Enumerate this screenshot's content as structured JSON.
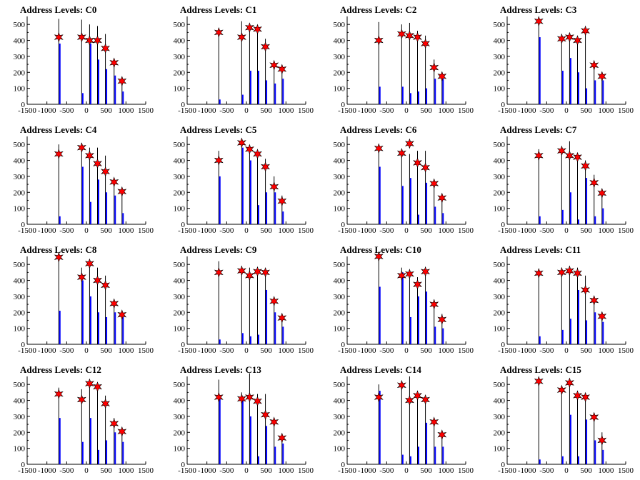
{
  "colors": {
    "background": "#ffffff",
    "black_bar": "#000000",
    "blue_bar": "#0000ff",
    "star_fill": "#ff0000",
    "star_stroke": "#000000",
    "axis": "#000000"
  },
  "chart_data": [
    {
      "type": "bar",
      "title": "Address Levels: C0",
      "xlim": [
        -1500,
        1500
      ],
      "ylim": [
        0,
        550
      ],
      "xticks": [
        -1500,
        -1000,
        -500,
        0,
        500,
        1000,
        1500
      ],
      "yticks": [
        0,
        100,
        200,
        300,
        400,
        500
      ],
      "x": [
        -700,
        -120,
        80,
        280,
        480,
        700,
        900
      ],
      "black_peaks": [
        535,
        530,
        500,
        490,
        440,
        280,
        160
      ],
      "blue_peaks": [
        380,
        70,
        380,
        280,
        220,
        180,
        80
      ],
      "markers": [
        420,
        420,
        400,
        400,
        350,
        260,
        145
      ]
    },
    {
      "type": "bar",
      "title": "Address Levels: C1",
      "xlim": [
        -1500,
        1500
      ],
      "ylim": [
        0,
        550
      ],
      "xticks": [
        -1500,
        -1000,
        -500,
        0,
        500,
        1000,
        1500
      ],
      "yticks": [
        0,
        100,
        200,
        300,
        400,
        500
      ],
      "x": [
        -700,
        -120,
        80,
        280,
        480,
        700,
        900
      ],
      "black_peaks": [
        460,
        520,
        490,
        480,
        410,
        260,
        230
      ],
      "blue_peaks": [
        30,
        60,
        210,
        210,
        150,
        130,
        160
      ],
      "markers": [
        450,
        420,
        480,
        470,
        360,
        245,
        220
      ]
    },
    {
      "type": "bar",
      "title": "Address Levels: C2",
      "xlim": [
        -1500,
        1500
      ],
      "ylim": [
        0,
        550
      ],
      "xticks": [
        -1500,
        -1000,
        -500,
        0,
        500,
        1000,
        1500
      ],
      "yticks": [
        0,
        100,
        200,
        300,
        400,
        500
      ],
      "x": [
        -700,
        -120,
        80,
        280,
        480,
        700,
        900
      ],
      "black_peaks": [
        515,
        500,
        510,
        460,
        430,
        280,
        190
      ],
      "blue_peaks": [
        110,
        110,
        70,
        80,
        100,
        160,
        160
      ],
      "markers": [
        400,
        440,
        430,
        420,
        380,
        230,
        175
      ]
    },
    {
      "type": "bar",
      "title": "Address Levels: C3",
      "xlim": [
        -1500,
        1500
      ],
      "ylim": [
        0,
        550
      ],
      "xticks": [
        -1500,
        -1000,
        -500,
        0,
        500,
        1000,
        1500
      ],
      "yticks": [
        0,
        100,
        200,
        300,
        400,
        500
      ],
      "x": [
        -700,
        -120,
        80,
        280,
        480,
        700,
        900
      ],
      "black_peaks": [
        540,
        440,
        440,
        420,
        460,
        270,
        180
      ],
      "blue_peaks": [
        420,
        210,
        290,
        200,
        100,
        150,
        150
      ],
      "markers": [
        520,
        410,
        420,
        400,
        460,
        245,
        175
      ]
    },
    {
      "type": "bar",
      "title": "Address Levels: C4",
      "xlim": [
        -1500,
        1500
      ],
      "ylim": [
        0,
        550
      ],
      "xticks": [
        -1500,
        -1000,
        -500,
        0,
        500,
        1000,
        1500
      ],
      "yticks": [
        0,
        100,
        200,
        300,
        400,
        500
      ],
      "x": [
        -700,
        -120,
        80,
        280,
        480,
        700,
        900
      ],
      "black_peaks": [
        500,
        510,
        480,
        480,
        430,
        280,
        200
      ],
      "blue_peaks": [
        50,
        360,
        140,
        280,
        200,
        180,
        70
      ],
      "markers": [
        440,
        480,
        430,
        380,
        330,
        265,
        205
      ]
    },
    {
      "type": "bar",
      "title": "Address Levels: C5",
      "xlim": [
        -1500,
        1500
      ],
      "ylim": [
        0,
        550
      ],
      "xticks": [
        -1500,
        -1000,
        -500,
        0,
        500,
        1000,
        1500
      ],
      "yticks": [
        0,
        100,
        200,
        300,
        400,
        500
      ],
      "x": [
        -700,
        -120,
        80,
        280,
        480,
        700,
        900
      ],
      "black_peaks": [
        460,
        520,
        490,
        460,
        410,
        300,
        180
      ],
      "blue_peaks": [
        300,
        480,
        400,
        120,
        200,
        200,
        80
      ],
      "markers": [
        400,
        510,
        470,
        440,
        360,
        235,
        145
      ]
    },
    {
      "type": "bar",
      "title": "Address Levels: C6",
      "xlim": [
        -1500,
        1500
      ],
      "ylim": [
        0,
        550
      ],
      "xticks": [
        -1500,
        -1000,
        -500,
        0,
        500,
        1000,
        1500
      ],
      "yticks": [
        0,
        100,
        200,
        300,
        400,
        500
      ],
      "x": [
        -700,
        -120,
        80,
        280,
        480,
        700,
        900
      ],
      "black_peaks": [
        500,
        460,
        440,
        460,
        460,
        280,
        190
      ],
      "blue_peaks": [
        360,
        240,
        290,
        60,
        260,
        110,
        70
      ],
      "markers": [
        475,
        445,
        505,
        385,
        355,
        255,
        165
      ]
    },
    {
      "type": "bar",
      "title": "Address Levels: C7",
      "xlim": [
        -1500,
        1500
      ],
      "ylim": [
        0,
        550
      ],
      "xticks": [
        -1500,
        -1000,
        -500,
        0,
        500,
        1000,
        1500
      ],
      "yticks": [
        0,
        100,
        200,
        300,
        400,
        500
      ],
      "x": [
        -700,
        -120,
        80,
        280,
        480,
        700,
        900
      ],
      "black_peaks": [
        470,
        480,
        520,
        440,
        400,
        310,
        210
      ],
      "blue_peaks": [
        50,
        90,
        200,
        30,
        290,
        50,
        100
      ],
      "markers": [
        430,
        460,
        430,
        420,
        365,
        260,
        195
      ]
    },
    {
      "type": "bar",
      "title": "Address Levels: C8",
      "xlim": [
        -1500,
        1500
      ],
      "ylim": [
        0,
        550
      ],
      "xticks": [
        -1500,
        -1000,
        -500,
        0,
        500,
        1000,
        1500
      ],
      "yticks": [
        0,
        100,
        200,
        300,
        400,
        500
      ],
      "x": [
        -700,
        -120,
        80,
        280,
        480,
        700,
        900
      ],
      "black_peaks": [
        540,
        480,
        510,
        480,
        430,
        280,
        190
      ],
      "blue_peaks": [
        210,
        400,
        300,
        200,
        170,
        200,
        170
      ],
      "markers": [
        545,
        420,
        505,
        400,
        370,
        255,
        185
      ]
    },
    {
      "type": "bar",
      "title": "Address Levels: C9",
      "xlim": [
        -1500,
        1500
      ],
      "ylim": [
        0,
        550
      ],
      "xticks": [
        -1500,
        -1000,
        -500,
        0,
        500,
        1000,
        1500
      ],
      "yticks": [
        0,
        100,
        200,
        300,
        400,
        500
      ],
      "x": [
        -700,
        -120,
        80,
        280,
        480,
        700,
        900
      ],
      "black_peaks": [
        520,
        490,
        480,
        480,
        460,
        280,
        180
      ],
      "blue_peaks": [
        30,
        70,
        50,
        60,
        340,
        200,
        110
      ],
      "markers": [
        450,
        460,
        430,
        455,
        450,
        270,
        165
      ]
    },
    {
      "type": "bar",
      "title": "Address Levels: C10",
      "xlim": [
        -1500,
        1500
      ],
      "ylim": [
        0,
        550
      ],
      "xticks": [
        -1500,
        -1000,
        -500,
        0,
        500,
        1000,
        1500
      ],
      "yticks": [
        0,
        100,
        200,
        300,
        400,
        500
      ],
      "x": [
        -700,
        -120,
        80,
        280,
        480,
        700,
        900
      ],
      "black_peaks": [
        540,
        480,
        460,
        420,
        480,
        280,
        190
      ],
      "blue_peaks": [
        360,
        450,
        170,
        300,
        330,
        110,
        100
      ],
      "markers": [
        550,
        430,
        440,
        375,
        455,
        250,
        155
      ]
    },
    {
      "type": "bar",
      "title": "Address Levels: C11",
      "xlim": [
        -1500,
        1500
      ],
      "ylim": [
        0,
        550
      ],
      "xticks": [
        -1500,
        -1000,
        -500,
        0,
        500,
        1000,
        1500
      ],
      "yticks": [
        0,
        100,
        200,
        300,
        400,
        500
      ],
      "x": [
        -700,
        -120,
        80,
        280,
        480,
        700,
        900
      ],
      "black_peaks": [
        470,
        480,
        490,
        480,
        430,
        300,
        190
      ],
      "blue_peaks": [
        50,
        90,
        160,
        340,
        150,
        200,
        140
      ],
      "markers": [
        445,
        450,
        460,
        445,
        340,
        275,
        175
      ]
    },
    {
      "type": "bar",
      "title": "Address Levels: C12",
      "xlim": [
        -1500,
        1500
      ],
      "ylim": [
        0,
        550
      ],
      "xticks": [
        -1500,
        -1000,
        -500,
        0,
        500,
        1000,
        1500
      ],
      "yticks": [
        0,
        100,
        200,
        300,
        400,
        500
      ],
      "x": [
        -700,
        -120,
        80,
        280,
        480,
        700,
        900
      ],
      "black_peaks": [
        480,
        470,
        520,
        500,
        430,
        290,
        210
      ],
      "blue_peaks": [
        290,
        140,
        290,
        90,
        150,
        200,
        140
      ],
      "markers": [
        440,
        405,
        505,
        485,
        380,
        255,
        205
      ]
    },
    {
      "type": "bar",
      "title": "Address Levels: C13",
      "xlim": [
        -1500,
        1500
      ],
      "ylim": [
        0,
        550
      ],
      "xticks": [
        -1500,
        -1000,
        -500,
        0,
        500,
        1000,
        1500
      ],
      "yticks": [
        0,
        100,
        200,
        300,
        400,
        500
      ],
      "x": [
        -700,
        -120,
        80,
        280,
        480,
        700,
        900
      ],
      "black_peaks": [
        530,
        450,
        570,
        440,
        440,
        280,
        190
      ],
      "blue_peaks": [
        420,
        420,
        300,
        50,
        240,
        110,
        130
      ],
      "markers": [
        420,
        410,
        420,
        395,
        310,
        265,
        165
      ]
    },
    {
      "type": "bar",
      "title": "Address Levels: C14",
      "xlim": [
        -1500,
        1500
      ],
      "ylim": [
        0,
        550
      ],
      "xticks": [
        -1500,
        -1000,
        -500,
        0,
        500,
        1000,
        1500
      ],
      "yticks": [
        0,
        100,
        200,
        300,
        400,
        500
      ],
      "x": [
        -700,
        -120,
        80,
        280,
        480,
        700,
        900
      ],
      "black_peaks": [
        500,
        520,
        550,
        460,
        430,
        280,
        200
      ],
      "blue_peaks": [
        460,
        60,
        50,
        110,
        260,
        110,
        110
      ],
      "markers": [
        420,
        495,
        400,
        430,
        405,
        265,
        185
      ]
    },
    {
      "type": "bar",
      "title": "Address Levels: C15",
      "xlim": [
        -1500,
        1500
      ],
      "ylim": [
        0,
        550
      ],
      "xticks": [
        -1500,
        -1000,
        -500,
        0,
        500,
        1000,
        1500
      ],
      "yticks": [
        0,
        100,
        200,
        300,
        400,
        500
      ],
      "x": [
        -700,
        -120,
        80,
        280,
        480,
        700,
        900
      ],
      "black_peaks": [
        540,
        480,
        520,
        460,
        410,
        310,
        200
      ],
      "blue_peaks": [
        30,
        50,
        310,
        50,
        280,
        150,
        90
      ],
      "markers": [
        520,
        465,
        510,
        430,
        420,
        295,
        150
      ]
    }
  ]
}
